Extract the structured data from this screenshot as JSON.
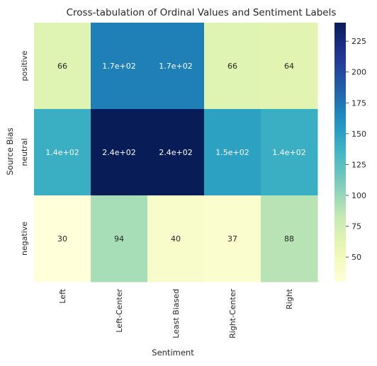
{
  "chart_data": {
    "type": "heatmap",
    "title": "Cross-tabulation of Ordinal Values and Sentiment Labels",
    "xlabel": "Sentiment",
    "ylabel": "Source Bias",
    "x_categories": [
      "Left",
      "Left-Center",
      "Least Biased",
      "Right-Center",
      "Right"
    ],
    "y_categories": [
      "positive",
      "neutral",
      "negative"
    ],
    "values": [
      [
        66,
        170,
        170,
        66,
        64
      ],
      [
        140,
        240,
        240,
        150,
        140
      ],
      [
        30,
        94,
        40,
        37,
        88
      ]
    ],
    "cell_labels": [
      [
        "66",
        "1.7e+02",
        "1.7e+02",
        "66",
        "64"
      ],
      [
        "1.4e+02",
        "2.4e+02",
        "2.4e+02",
        "1.5e+02",
        "1.4e+02"
      ],
      [
        "30",
        "94",
        "40",
        "37",
        "88"
      ]
    ],
    "colormap": "YlGnBu",
    "colorbar": {
      "vmin": 30,
      "vmax": 240,
      "ticks": [
        50,
        75,
        100,
        125,
        150,
        175,
        200,
        225
      ],
      "tick_labels": [
        "50",
        "75",
        "100",
        "125",
        "150",
        "175",
        "200",
        "225"
      ]
    },
    "grid": false
  }
}
